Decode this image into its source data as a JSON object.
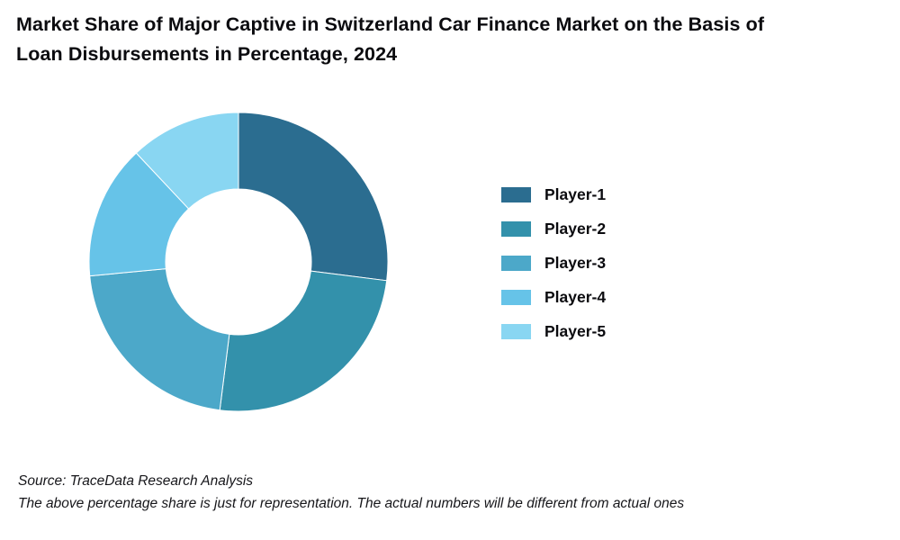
{
  "title": {
    "line1": "Market Share of Major Captive in Switzerland Car Finance Market on the Basis of",
    "line2": "Loan Disbursements in Percentage, 2024"
  },
  "footer": {
    "source": "Source: TraceData Research Analysis",
    "disclaimer": "The above percentage share is just for representation. The actual numbers will be different from actual ones"
  },
  "chart_data": {
    "type": "pie",
    "subtype": "donut",
    "title": "Market Share of Major Captive in Switzerland Car Finance Market on the Basis of Loan Disbursements in Percentage, 2024",
    "unit": "percent",
    "start_angle_deg": 0,
    "direction": "clockwise",
    "inner_radius_ratio": 0.49,
    "legend_position": "right",
    "data_labels_shown": false,
    "series": [
      {
        "name": "Player-1",
        "value": 27,
        "color": "#2B6D90"
      },
      {
        "name": "Player-2",
        "value": 25,
        "color": "#3391AB"
      },
      {
        "name": "Player-3",
        "value": 21.5,
        "color": "#4CA8C9"
      },
      {
        "name": "Player-4",
        "value": 14.5,
        "color": "#66C3E8"
      },
      {
        "name": "Player-5",
        "value": 12,
        "color": "#89D6F2"
      }
    ]
  }
}
